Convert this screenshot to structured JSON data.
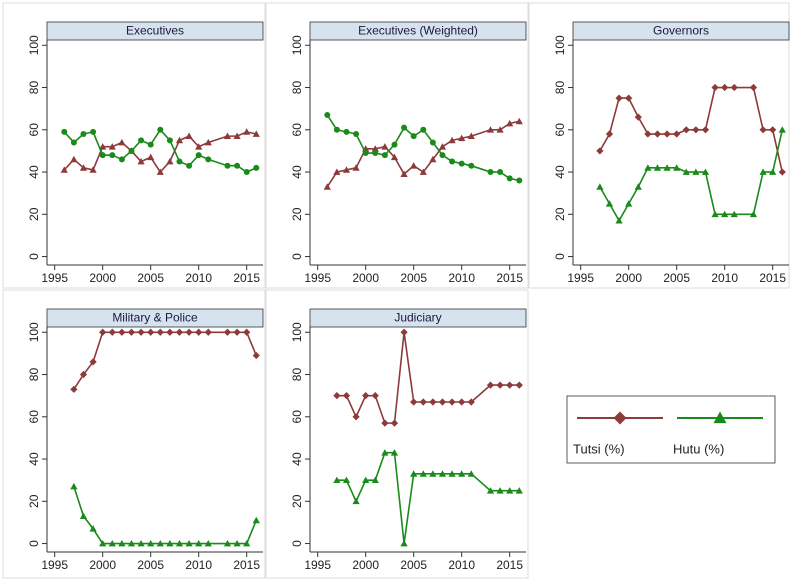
{
  "chart_data": [
    {
      "type": "line",
      "title": "Executives",
      "x": [
        1996,
        1997,
        1998,
        1999,
        2000,
        2001,
        2002,
        2003,
        2004,
        2005,
        2006,
        2007,
        2008,
        2009,
        2010,
        2011,
        2013,
        2014,
        2015,
        2016
      ],
      "series": [
        {
          "color": "#8c3a3a",
          "marker": "triangle",
          "values": [
            41,
            46,
            42,
            41,
            52,
            52,
            54,
            50,
            45,
            47,
            40,
            45,
            55,
            57,
            52,
            54,
            57,
            57,
            59,
            58
          ]
        },
        {
          "color": "#1a8a1a",
          "marker": "circle",
          "values": [
            59,
            54,
            58,
            59,
            48,
            48,
            46,
            50,
            55,
            53,
            60,
            55,
            45,
            43,
            48,
            46,
            43,
            43,
            40,
            42
          ]
        }
      ],
      "xlim": [
        1994.2,
        2016.7
      ],
      "xticks": [
        1995,
        2000,
        2005,
        2010,
        2015
      ],
      "ylim": [
        -4,
        102.5
      ],
      "yticks": [
        0,
        20,
        40,
        60,
        80,
        100
      ]
    },
    {
      "type": "line",
      "title": "Executives (Weighted)",
      "x": [
        1996,
        1997,
        1998,
        1999,
        2000,
        2001,
        2002,
        2003,
        2004,
        2005,
        2006,
        2007,
        2008,
        2009,
        2010,
        2011,
        2013,
        2014,
        2015,
        2016
      ],
      "series": [
        {
          "color": "#8c3a3a",
          "marker": "triangle",
          "values": [
            33,
            40,
            41,
            42,
            51,
            51,
            52,
            47,
            39,
            43,
            40,
            46,
            52,
            55,
            56,
            57,
            60,
            60,
            63,
            64
          ]
        },
        {
          "color": "#1a8a1a",
          "marker": "circle",
          "values": [
            67,
            60,
            59,
            58,
            49,
            49,
            48,
            53,
            61,
            57,
            60,
            54,
            48,
            45,
            44,
            43,
            40,
            40,
            37,
            36
          ]
        }
      ],
      "xlim": [
        1994.2,
        2016.7
      ],
      "xticks": [
        1995,
        2000,
        2005,
        2010,
        2015
      ],
      "ylim": [
        -4,
        102.5
      ],
      "yticks": [
        0,
        20,
        40,
        60,
        80,
        100
      ]
    },
    {
      "type": "line",
      "title": "Governors",
      "x": [
        1997,
        1998,
        1999,
        2000,
        2001,
        2002,
        2003,
        2004,
        2005,
        2006,
        2007,
        2008,
        2009,
        2010,
        2011,
        2013,
        2014,
        2015,
        2016
      ],
      "series": [
        {
          "name": "Tutsi (%)",
          "color": "#8c3a3a",
          "marker": "diamond",
          "values": [
            50,
            58,
            75,
            75,
            66,
            58,
            58,
            58,
            58,
            60,
            60,
            60,
            80,
            80,
            80,
            80,
            60,
            60,
            40
          ]
        },
        {
          "name": "Hutu (%)",
          "color": "#1a8a1a",
          "marker": "triangle",
          "values": [
            33,
            25,
            17,
            25,
            33,
            42,
            42,
            42,
            42,
            40,
            40,
            40,
            20,
            20,
            20,
            20,
            40,
            40,
            60
          ]
        }
      ],
      "xlim": [
        1994.2,
        2016.7
      ],
      "xticks": [
        1995,
        2000,
        2005,
        2010,
        2015
      ],
      "ylim": [
        -4,
        102.5
      ],
      "yticks": [
        0,
        20,
        40,
        60,
        80,
        100
      ]
    },
    {
      "type": "line",
      "title": "Military & Police",
      "x": [
        1997,
        1998,
        1999,
        2000,
        2001,
        2002,
        2003,
        2004,
        2005,
        2006,
        2007,
        2008,
        2009,
        2010,
        2011,
        2013,
        2014,
        2015,
        2016
      ],
      "series": [
        {
          "color": "#8c3a3a",
          "marker": "diamond",
          "values": [
            73,
            80,
            86,
            100,
            100,
            100,
            100,
            100,
            100,
            100,
            100,
            100,
            100,
            100,
            100,
            100,
            100,
            100,
            89
          ]
        },
        {
          "color": "#1a8a1a",
          "marker": "triangle",
          "values": [
            27,
            13,
            7,
            0,
            0,
            0,
            0,
            0,
            0,
            0,
            0,
            0,
            0,
            0,
            0,
            0,
            0,
            0,
            11
          ]
        }
      ],
      "xlim": [
        1994.2,
        2016.7
      ],
      "xticks": [
        1995,
        2000,
        2005,
        2010,
        2015
      ],
      "ylim": [
        -4,
        102.5
      ],
      "yticks": [
        0,
        20,
        40,
        60,
        80,
        100
      ]
    },
    {
      "type": "line",
      "title": "Judiciary",
      "x": [
        1997,
        1998,
        1999,
        2000,
        2001,
        2002,
        2003,
        2004,
        2005,
        2006,
        2007,
        2008,
        2009,
        2010,
        2011,
        2013,
        2014,
        2015,
        2016
      ],
      "series": [
        {
          "color": "#8c3a3a",
          "marker": "diamond",
          "values": [
            70,
            70,
            60,
            70,
            70,
            57,
            57,
            100,
            67,
            67,
            67,
            67,
            67,
            67,
            67,
            75,
            75,
            75,
            75
          ]
        },
        {
          "color": "#1a8a1a",
          "marker": "triangle",
          "values": [
            30,
            30,
            20,
            30,
            30,
            43,
            43,
            0,
            33,
            33,
            33,
            33,
            33,
            33,
            33,
            25,
            25,
            25,
            25
          ]
        }
      ],
      "xlim": [
        1994.2,
        2016.7
      ],
      "xticks": [
        1995,
        2000,
        2005,
        2010,
        2015
      ],
      "ylim": [
        -4,
        102.5
      ],
      "yticks": [
        0,
        20,
        40,
        60,
        80,
        100
      ]
    }
  ]
}
